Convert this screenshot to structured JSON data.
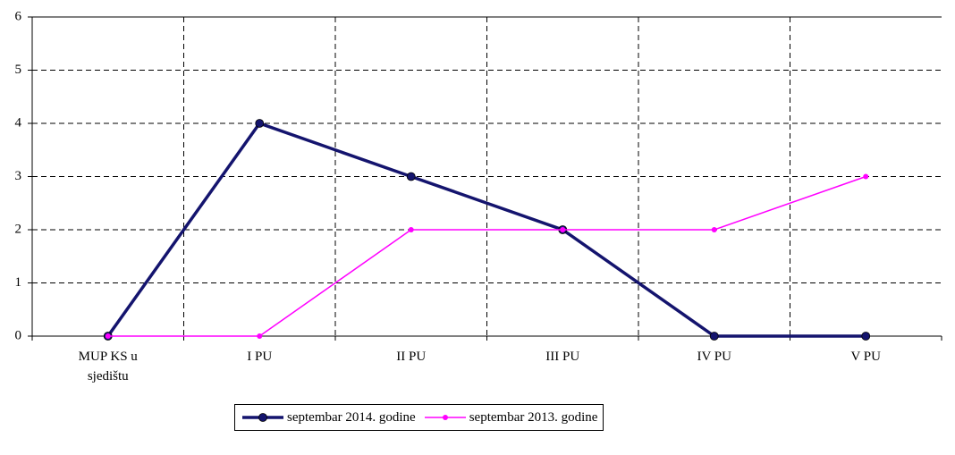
{
  "chart_data": {
    "type": "line",
    "categories": [
      "MUP KS u sjedištu",
      "I PU",
      "II PU",
      "III PU",
      "IV PU",
      "V PU"
    ],
    "series": [
      {
        "name": "septembar 2014. godine",
        "color": "#14146e",
        "values": [
          0,
          4,
          3,
          2,
          0,
          0
        ]
      },
      {
        "name": "septembar 2013. godine",
        "color": "#ff00ff",
        "values": [
          0,
          0,
          2,
          2,
          2,
          3
        ]
      }
    ],
    "ylim": [
      0,
      6
    ],
    "yticks": [
      0,
      1,
      2,
      3,
      4,
      5,
      6
    ],
    "grid": true,
    "legend": "bottom"
  }
}
